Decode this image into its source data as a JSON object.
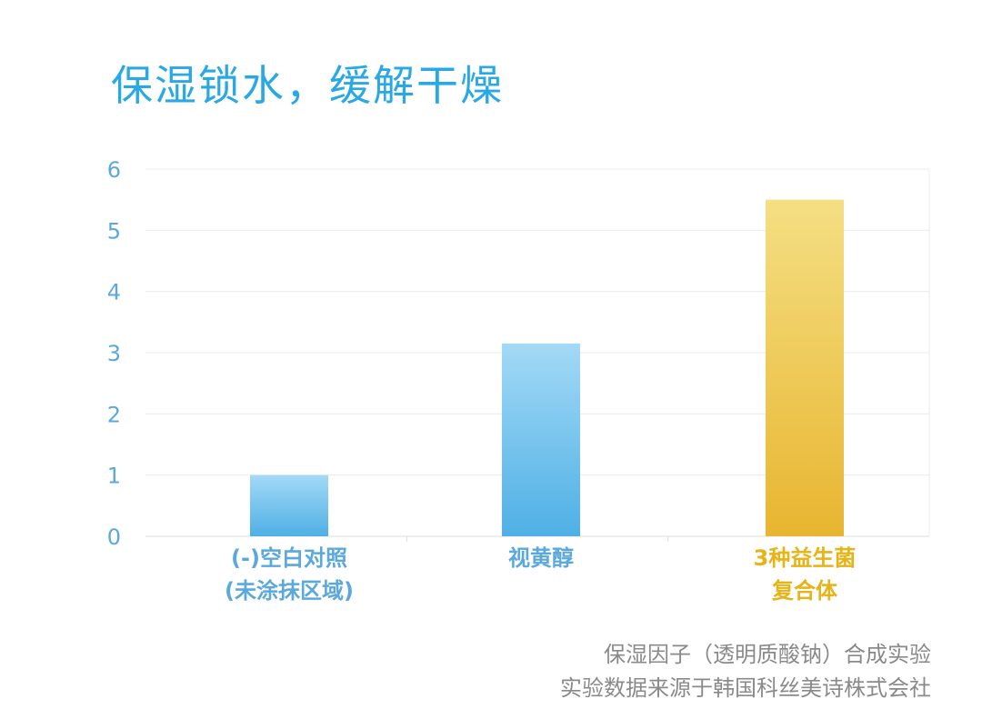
{
  "title": "保湿锁水，缓解干燥",
  "footnote": {
    "line1": "保湿因子（透明质酸钠）合成实验",
    "line2": "实验数据来源于韩国科丝美诗株式会社"
  },
  "colors": {
    "title": "#29a8e6",
    "axis_text": "#5ba9dc",
    "blue_bar_top": "#a3d9f6",
    "blue_bar_bottom": "#4fb0e5",
    "gold_bar_top": "#f4df83",
    "gold_bar_bottom": "#e8b530",
    "gold_label": "#e6b417",
    "footnote": "#8a8a8a",
    "grid": "#ececec"
  },
  "chart_data": {
    "type": "bar",
    "title": "保湿锁水，缓解干燥",
    "xlabel": "",
    "ylabel": "",
    "ylim": [
      0,
      6
    ],
    "yticks": [
      0,
      1,
      2,
      3,
      4,
      5,
      6
    ],
    "grid": true,
    "legend": "none",
    "categories": [
      {
        "lines": [
          "(-)空白对照",
          "(未涂抹区域)"
        ],
        "color": "blue"
      },
      {
        "lines": [
          "视黄醇"
        ],
        "color": "blue"
      },
      {
        "lines": [
          "3种益生菌",
          "复合体"
        ],
        "color": "gold"
      }
    ],
    "values": [
      1.0,
      3.15,
      5.5
    ]
  }
}
